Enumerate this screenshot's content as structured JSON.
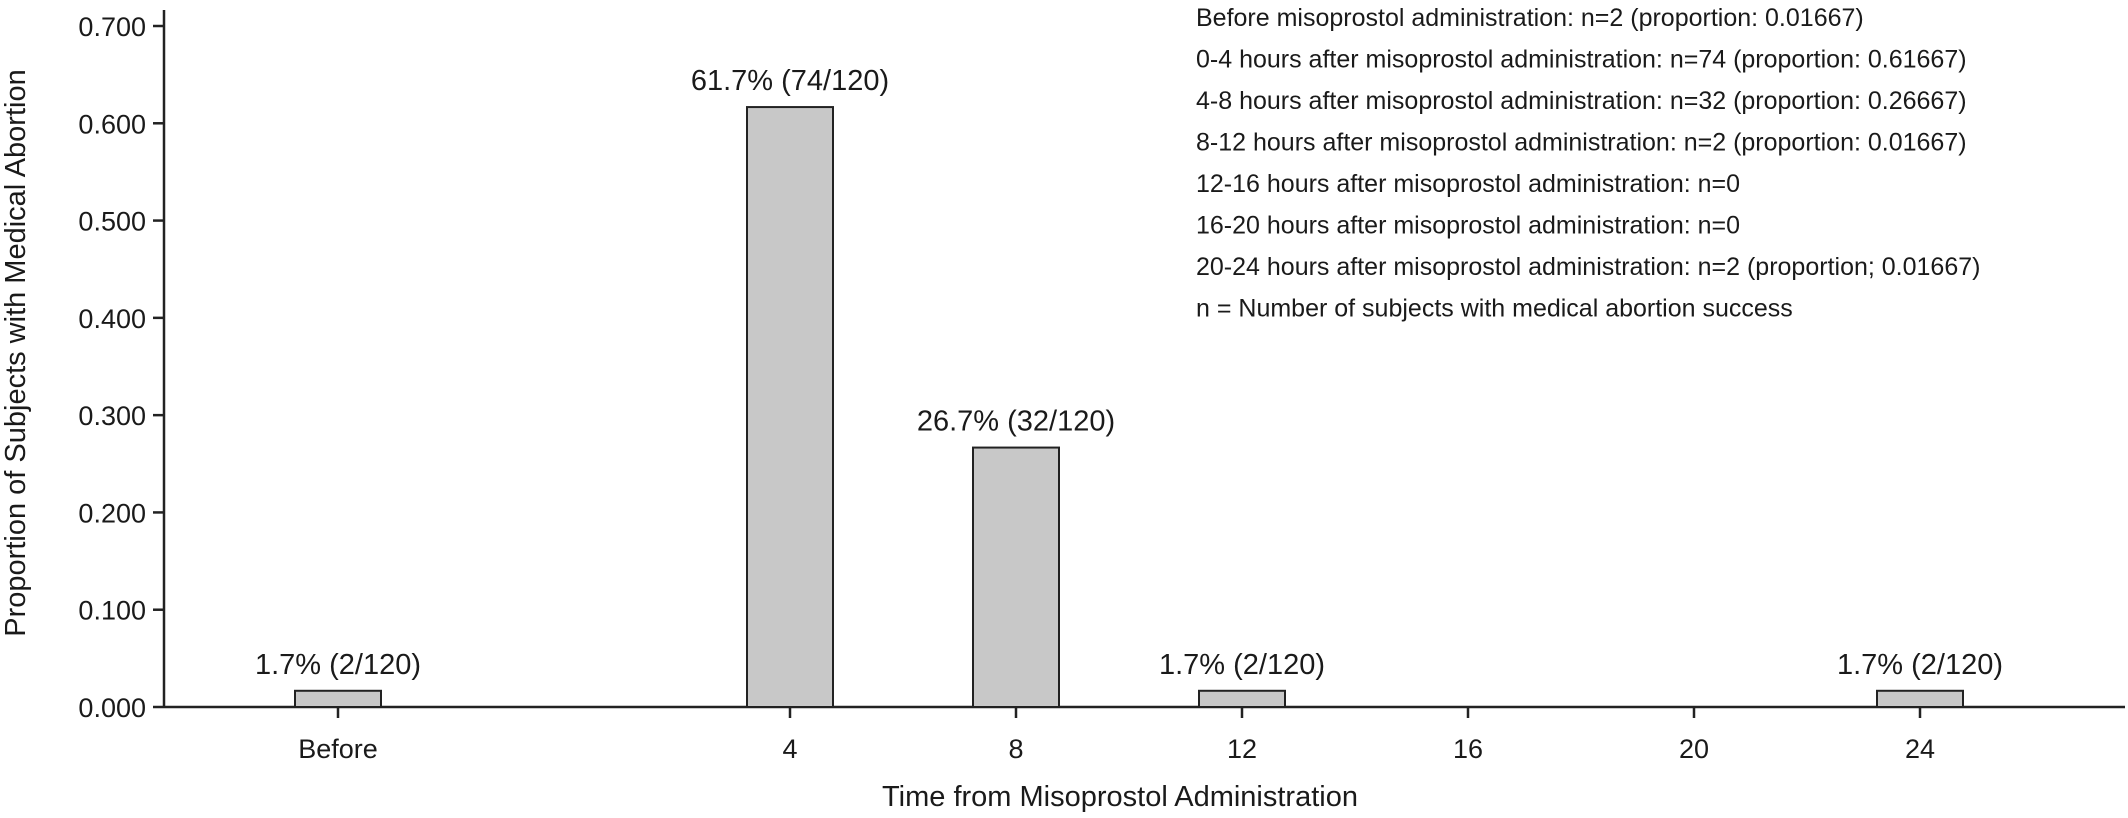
{
  "chart_data": {
    "type": "bar",
    "title": "",
    "xlabel": "Time from Misoprostol Administration",
    "ylabel": "Proportion of Subjects with Medical Abortion",
    "ylim": [
      0,
      0.7
    ],
    "yticks": [
      "0.000",
      "0.100",
      "0.200",
      "0.300",
      "0.400",
      "0.500",
      "0.600",
      "0.700"
    ],
    "xticks": [
      {
        "label": "Before",
        "value": -4
      },
      {
        "label": "4",
        "value": 4
      },
      {
        "label": "8",
        "value": 8
      },
      {
        "label": "12",
        "value": 12
      },
      {
        "label": "16",
        "value": 16
      },
      {
        "label": "20",
        "value": 20
      },
      {
        "label": "24",
        "value": 24
      }
    ],
    "bars": [
      {
        "x": -4,
        "value": 0.01667,
        "label": "1.7% (2/120)"
      },
      {
        "x": 4,
        "value": 0.61667,
        "label": "61.7% (74/120)"
      },
      {
        "x": 8,
        "value": 0.26667,
        "label": "26.7% (32/120)"
      },
      {
        "x": 12,
        "value": 0.01667,
        "label": "1.7% (2/120)"
      },
      {
        "x": 24,
        "value": 0.01667,
        "label": "1.7% (2/120)"
      }
    ],
    "grid": false,
    "annotations": [
      "Before misoprostol administration: n=2 (proportion: 0.01667)",
      "0-4 hours after misoprostol administration: n=74 (proportion: 0.61667)",
      "4-8 hours after misoprostol administration: n=32 (proportion: 0.26667)",
      "8-12 hours after misoprostol administration: n=2 (proportion: 0.01667)",
      "12-16 hours after misoprostol administration: n=0",
      "16-20 hours after misoprostol administration: n=0",
      "20-24 hours after misoprostol administration: n=2 (proportion; 0.01667)",
      "n = Number of subjects with medical abortion success"
    ]
  }
}
